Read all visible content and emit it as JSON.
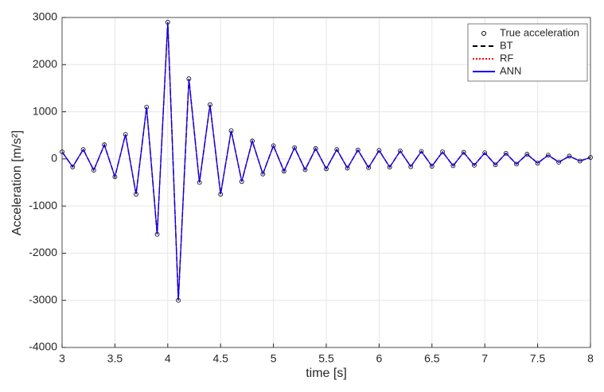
{
  "chart_data": {
    "type": "line",
    "xlabel": "time [s]",
    "ylabel": "Acceleration [m/s²]",
    "x": [
      3,
      3.1,
      3.2,
      3.3,
      3.4,
      3.5,
      3.6,
      3.7,
      3.8,
      3.9,
      4,
      4.1,
      4.2,
      4.3,
      4.4,
      4.5,
      4.6,
      4.7,
      4.8,
      4.9,
      5,
      5.1,
      5.2,
      5.3,
      5.4,
      5.5,
      5.6,
      5.7,
      5.8,
      5.9,
      6,
      6.1,
      6.2,
      6.3,
      6.4,
      6.5,
      6.6,
      6.7,
      6.8,
      6.9,
      7,
      7.1,
      7.2,
      7.3,
      7.4,
      7.5,
      7.6,
      7.7,
      7.8,
      7.9,
      8
    ],
    "series": [
      {
        "name": "True acceleration",
        "color": "#000000",
        "style": "markers",
        "values": [
          150,
          -170,
          200,
          -240,
          300,
          -380,
          520,
          -750,
          1100,
          -1600,
          2900,
          -3000,
          1700,
          -500,
          1150,
          -750,
          600,
          -480,
          380,
          -320,
          280,
          -260,
          240,
          -230,
          220,
          -210,
          200,
          -195,
          190,
          -185,
          180,
          -175,
          170,
          -165,
          160,
          -155,
          150,
          -145,
          140,
          -135,
          130,
          -125,
          120,
          -110,
          100,
          -90,
          80,
          -70,
          60,
          -45,
          30
        ]
      },
      {
        "name": "BT",
        "color": "#000000",
        "style": "dashed",
        "values": [
          150,
          -170,
          200,
          -240,
          300,
          -380,
          520,
          -750,
          1100,
          -1600,
          2900,
          -3000,
          1700,
          -500,
          1150,
          -750,
          600,
          -480,
          380,
          -320,
          280,
          -260,
          240,
          -230,
          220,
          -210,
          200,
          -195,
          190,
          -185,
          180,
          -175,
          170,
          -165,
          160,
          -155,
          150,
          -145,
          140,
          -135,
          130,
          -125,
          120,
          -110,
          100,
          -90,
          80,
          -70,
          60,
          -45,
          30
        ]
      },
      {
        "name": "RF",
        "color": "#ff0000",
        "style": "dotted",
        "values": [
          150,
          -170,
          200,
          -240,
          300,
          -380,
          520,
          -750,
          1100,
          -1600,
          2900,
          -3000,
          1700,
          -500,
          1150,
          -750,
          600,
          -480,
          380,
          -320,
          280,
          -260,
          240,
          -230,
          220,
          -210,
          200,
          -195,
          190,
          -185,
          180,
          -175,
          170,
          -165,
          160,
          -155,
          150,
          -145,
          140,
          -135,
          130,
          -125,
          120,
          -110,
          100,
          -90,
          80,
          -70,
          60,
          -45,
          30
        ]
      },
      {
        "name": "ANN",
        "color": "#0000ff",
        "style": "solid",
        "values": [
          150,
          -170,
          200,
          -240,
          300,
          -380,
          520,
          -750,
          1100,
          -1600,
          2900,
          -3000,
          1700,
          -500,
          1150,
          -750,
          600,
          -480,
          380,
          -320,
          280,
          -260,
          240,
          -230,
          220,
          -210,
          200,
          -195,
          190,
          -185,
          180,
          -175,
          170,
          -165,
          160,
          -155,
          150,
          -145,
          140,
          -135,
          130,
          -125,
          120,
          -110,
          100,
          -90,
          80,
          -70,
          60,
          -45,
          30
        ]
      }
    ],
    "xlim": [
      3,
      8
    ],
    "xticks": [
      3,
      3.5,
      4,
      4.5,
      5,
      5.5,
      6,
      6.5,
      7,
      7.5,
      8
    ],
    "ylim": [
      -4000,
      3000
    ],
    "yticks": [
      -4000,
      -3000,
      -2000,
      -1000,
      0,
      1000,
      2000,
      3000
    ],
    "grid": true,
    "legend": "top-right"
  }
}
